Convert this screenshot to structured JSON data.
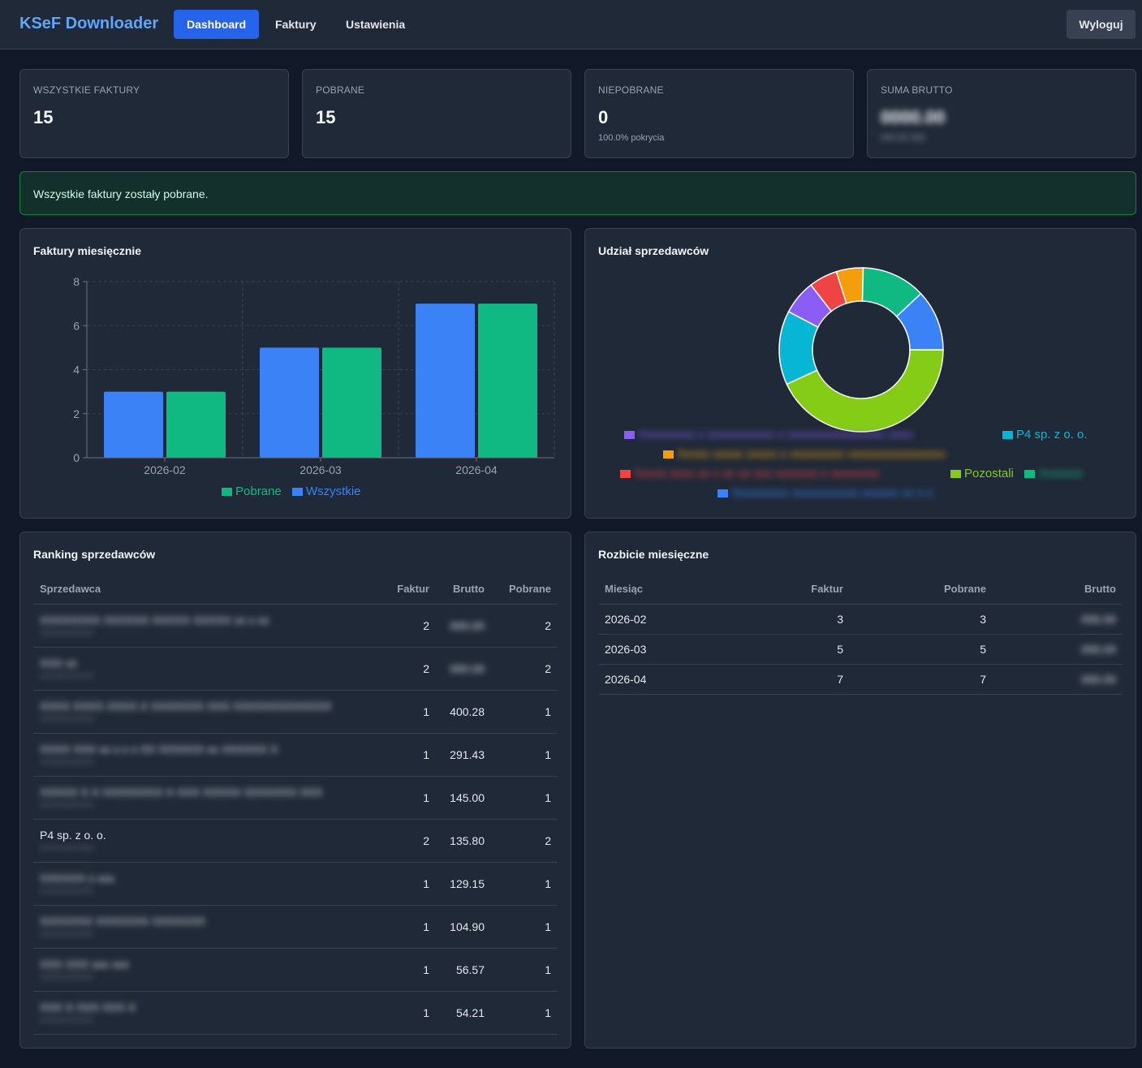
{
  "app": {
    "title": "KSeF Downloader"
  },
  "nav": [
    {
      "label": "Dashboard",
      "active": true
    },
    {
      "label": "Faktury",
      "active": false
    },
    {
      "label": "Ustawienia",
      "active": false
    }
  ],
  "logout_label": "Wyloguj",
  "stats": [
    {
      "label": "WSZYSTKIE FAKTURY",
      "value": "15",
      "sub": ""
    },
    {
      "label": "POBRANE",
      "value": "15",
      "sub": ""
    },
    {
      "label": "NIEPOBRANE",
      "value": "0",
      "sub": "100.0% pokrycia"
    },
    {
      "label": "SUMA BRUTTO",
      "value": "0000.00",
      "sub": "000.00 000",
      "redacted": true
    }
  ],
  "alert": {
    "text": "Wszystkie faktury zostały pobrane.",
    "color": "#15803d"
  },
  "monthly_chart": {
    "title": "Faktury miesięcznie"
  },
  "chart_data": [
    {
      "type": "bar",
      "categories": [
        "2026-02",
        "2026-03",
        "2026-04"
      ],
      "series": [
        {
          "name": "Wszystkie",
          "values": [
            3,
            5,
            7
          ],
          "color": "#3b82f6"
        },
        {
          "name": "Pobrane",
          "values": [
            3,
            5,
            7
          ],
          "color": "#10b981"
        }
      ],
      "ylim": [
        0,
        8
      ],
      "yticks": [
        0,
        2,
        4,
        6,
        8
      ],
      "legend_order": [
        "Pobrane",
        "Wszystkie"
      ],
      "legend_position": "bottom",
      "grid": true
    },
    {
      "type": "pie",
      "donut": true,
      "slices": [
        {
          "label": "",
          "value": 6.8,
          "color": "#8b5cf6",
          "redacted": true
        },
        {
          "label": "P4 sp. z o. o.",
          "value": 14.6,
          "color": "#06b6d4"
        },
        {
          "label": "",
          "value": 43.1,
          "color": "#84cc16",
          "label_ref": "Pozostali"
        },
        {
          "label": "",
          "value": 12.0,
          "color": "#3b82f6",
          "redacted": true
        },
        {
          "label": "",
          "value": 12.6,
          "color": "#10b981",
          "redacted": true
        },
        {
          "label": "",
          "value": 5.3,
          "color": "#f59e0b",
          "redacted": true
        },
        {
          "label": "",
          "value": 5.6,
          "color": "#ef4444",
          "redacted": true
        }
      ],
      "legend_position": "bottom"
    }
  ],
  "pie_chart": {
    "title": "Udział sprzedawców",
    "legend": [
      {
        "label": "Xxxxxxxxx x xxxxxxxxxxx x xxxxxxxxxxxxxxxx xxxx",
        "color": "#8b5cf6",
        "redacted": true
      },
      {
        "label": "P4 sp. z o. o.",
        "color": "#06b6d4",
        "redacted": false
      },
      {
        "label": "Xxxxx xxxxx xxxxx x xxxxxxxxx xxxxxxxxxxxxxxxx",
        "color": "#f59e0b",
        "redacted": true
      },
      {
        "label": "Xxxxx xxxx xx x xx xx xxx xxxxxxx x xxxxxxxx",
        "color": "#ef4444",
        "redacted": true
      },
      {
        "label": "Pozostali",
        "color": "#84cc16",
        "redacted": false
      },
      {
        "label": "Xxxxxxx",
        "color": "#10b981",
        "redacted": true
      },
      {
        "label": "Xxxxxxxxx xxxxxxxxxxx xxxxxx xx x x",
        "color": "#3b82f6",
        "redacted": true
      }
    ]
  },
  "ranking": {
    "title": "Ranking sprzedawców",
    "headers": [
      "Sprzedawca",
      "Faktur",
      "Brutto",
      "Pobrane"
    ],
    "rows": [
      {
        "name": "XXXXXXXX XXXXXX XXXXX XXXXX xx x xx",
        "sub": "XXXXXXXXXX",
        "faktur": "2",
        "brutto": "000.00",
        "pobrane": "2",
        "redacted": true
      },
      {
        "name": "XXX xx",
        "sub": "XXXXXXXXXX",
        "faktur": "2",
        "brutto": "000.00",
        "pobrane": "2",
        "redacted": true
      },
      {
        "name": "XXXX XXXX XXXX X XXXXXXX XXX XXXXXXXXXXXXX",
        "sub": "XXXXXXXXXX",
        "faktur": "1",
        "brutto": "400.28",
        "pobrane": "1",
        "redacted": true
      },
      {
        "name": "XXXX XXX xx x x x XX XXXXXX xx XXXXXX X",
        "sub": "XXXXXXXXXX",
        "faktur": "1",
        "brutto": "291.43",
        "pobrane": "1",
        "redacted": true
      },
      {
        "name": "XXXXX X X XXXXXXXX X XXX XXXXX XXXXXXX XXX",
        "sub": "XXXXXXXXXX",
        "faktur": "1",
        "brutto": "145.00",
        "pobrane": "1",
        "redacted": true
      },
      {
        "name": "P4 sp. z o. o.",
        "sub": "XXXXXXXXXX",
        "faktur": "2",
        "brutto": "135.80",
        "pobrane": "2",
        "redacted": false
      },
      {
        "name": "XXXXXX x xxx",
        "sub": "XXXXXXXXXX",
        "faktur": "1",
        "brutto": "129.15",
        "pobrane": "1",
        "redacted": true
      },
      {
        "name": "XXXXXXX XXXXXXX XXXXXXX",
        "sub": "XXXXXXXXXX",
        "faktur": "1",
        "brutto": "104.90",
        "pobrane": "1",
        "redacted": true
      },
      {
        "name": "XXX XXX xxx xxx",
        "sub": "XXXXXXXXXX",
        "faktur": "1",
        "brutto": "56.57",
        "pobrane": "1",
        "redacted": true
      },
      {
        "name": "XXX X XXX XXX X",
        "sub": "XXXXXXXXXX",
        "faktur": "1",
        "brutto": "54.21",
        "pobrane": "1",
        "redacted": true
      }
    ]
  },
  "monthly_breakdown": {
    "title": "Rozbicie miesięczne",
    "headers": [
      "Miesiąc",
      "Faktur",
      "Pobrane",
      "Brutto"
    ],
    "rows": [
      {
        "month": "2026-02",
        "faktur": "3",
        "pobrane": "3",
        "brutto": "000.00",
        "redacted": true
      },
      {
        "month": "2026-03",
        "faktur": "5",
        "pobrane": "5",
        "brutto": "000.00",
        "redacted": true
      },
      {
        "month": "2026-04",
        "faktur": "7",
        "pobrane": "7",
        "brutto": "000.00",
        "redacted": true
      }
    ]
  }
}
